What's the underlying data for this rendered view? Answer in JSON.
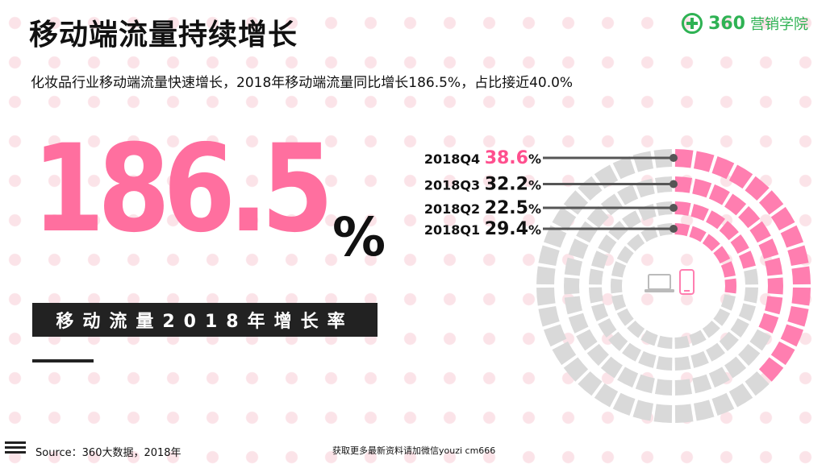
{
  "title": "移动端流量持续增长",
  "logo": {
    "number": "360",
    "name": "营销学院",
    "icon": "logo-plus-circle-icon",
    "color": "#2eb253"
  },
  "subtitle": "化妆品行业移动端流量快速增长，2018年移动端流量同比增长186.5%，占比接近40.0%",
  "headline": {
    "value": "186.5",
    "unit": "%",
    "caption": "移动流量2018年增长率",
    "color": "#ff6f9f"
  },
  "footer": {
    "source": "Source：360大数据，2018年",
    "promo": "获取更多最新资料请加微信youzi cm666"
  },
  "chart_data": {
    "type": "radial-bar",
    "unit": "%",
    "max": 100,
    "colors": {
      "highlight": "#ff7eb0",
      "rest": "#d9d9d9",
      "leader": "#555555",
      "accent": "#ff4f8e"
    },
    "center_icons": [
      "laptop-icon",
      "phone-icon"
    ],
    "series": [
      {
        "label": "2018Q4",
        "value": 38.6,
        "accent": true
      },
      {
        "label": "2018Q3",
        "value": 32.2,
        "accent": false
      },
      {
        "label": "2018Q2",
        "value": 22.5,
        "accent": false
      },
      {
        "label": "2018Q1",
        "value": 29.4,
        "accent": false
      }
    ]
  }
}
